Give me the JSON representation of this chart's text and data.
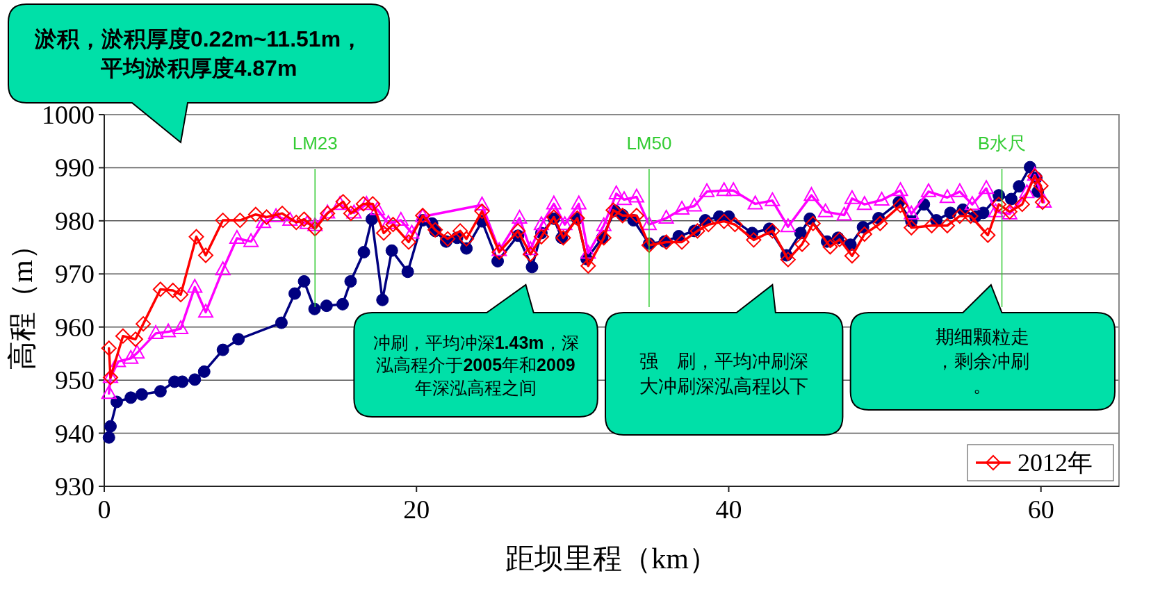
{
  "chart_data": {
    "type": "line",
    "xlabel": "距坝里程（km）",
    "ylabel": "高程（m）",
    "xlim": [
      0,
      65
    ],
    "xticks": [
      0,
      20,
      40,
      60
    ],
    "ylim": [
      930,
      1000
    ],
    "yticks": [
      930,
      940,
      950,
      960,
      970,
      980,
      990,
      1000
    ],
    "grid": "y",
    "legend": "bottom right",
    "line_style": "solid",
    "series": [
      {
        "color": "#000080",
        "marker": "circle",
        "x": [
          0.3,
          0.4,
          0.8,
          1.7,
          2.4,
          3.6,
          4.5,
          5.0,
          5.8,
          6.4,
          7.6,
          8.6,
          11.35,
          12.2,
          12.8,
          13.47,
          14.24,
          15.27,
          15.78,
          16.63,
          17.14,
          17.82,
          18.42,
          19.44,
          20.4,
          21.0,
          21.2,
          21.9,
          22.6,
          23.2,
          24.2,
          25.2,
          26.5,
          27.4,
          28.0,
          28.8,
          29.3,
          30.3,
          30.9,
          31.9,
          32.7,
          33.2,
          33.9,
          34.9,
          35.9,
          36.8,
          37.8,
          38.5,
          39.4,
          40.0,
          41.5,
          42.6,
          43.7,
          44.6,
          45.2,
          46.3,
          47.0,
          47.8,
          48.6,
          49.6,
          50.9,
          51.7,
          52.5,
          53.3,
          54.2,
          55.0,
          55.8,
          56.3,
          57.3,
          58.1,
          58.6,
          59.3,
          59.7,
          59.8
        ],
        "values": [
          939.2,
          941.3,
          945.9,
          946.7,
          947.3,
          947.9,
          949.7,
          949.7,
          950.1,
          951.6,
          955.7,
          957.7,
          960.8,
          966.3,
          968.6,
          963.4,
          964.0,
          964.3,
          968.6,
          974.1,
          980.3,
          965.1,
          974.4,
          970.4,
          980.1,
          979.5,
          978.1,
          976.1,
          976.8,
          974.8,
          979.9,
          972.4,
          977.2,
          971.3,
          977.7,
          980.4,
          976.8,
          980.4,
          972.8,
          976.8,
          981.9,
          981.1,
          980.1,
          975.7,
          976.1,
          977.1,
          978.1,
          980.1,
          980.8,
          980.8,
          977.7,
          978.5,
          973.5,
          977.7,
          980.4,
          976.1,
          976.8,
          975.5,
          978.8,
          980.5,
          983.5,
          979.9,
          983.1,
          980.1,
          981.5,
          982.1,
          980.8,
          981.5,
          984.8,
          984.1,
          986.5,
          990.1,
          988.1,
          985.5
        ]
      },
      {
        "color": "#ff00ff",
        "marker": "triangle",
        "x": [
          0.3,
          0.4,
          0.9,
          1.7,
          2.1,
          3.3,
          4.1,
          4.9,
          5.8,
          6.5,
          7.6,
          8.5,
          9.4,
          10.2,
          11.0,
          11.9,
          13.0,
          13.5,
          14.3,
          15.1,
          16.0,
          16.8,
          17.5,
          18.2,
          19.0,
          19.7,
          20.4,
          24.2,
          25.3,
          26.6,
          27.3,
          28.0,
          28.8,
          29.5,
          30.4,
          31.0,
          32.0,
          32.8,
          33.3,
          34.1,
          34.9,
          36.0,
          37.0,
          37.8,
          38.6,
          39.7,
          40.3,
          41.7,
          42.8,
          43.8,
          45.3,
          46.2,
          47.4,
          47.9,
          48.7,
          49.8,
          51.0,
          51.7,
          52.8,
          54.0,
          54.8,
          55.6,
          56.5,
          57.1,
          58.0,
          59.1,
          59.6,
          60.2
        ],
        "values": [
          947.5,
          950.5,
          953.5,
          954.1,
          955.1,
          958.8,
          959.1,
          959.7,
          967.5,
          962.8,
          970.8,
          976.7,
          976.1,
          979.7,
          980.8,
          980.1,
          979.5,
          979.1,
          981.5,
          983.1,
          981.5,
          983.1,
          982.1,
          979.5,
          980.1,
          977.7,
          980.8,
          983.0,
          974.4,
          980.5,
          974.6,
          979.3,
          983.2,
          979.3,
          983.2,
          973.9,
          979.1,
          985.1,
          984.0,
          984.5,
          979.3,
          980.5,
          982.2,
          982.8,
          985.5,
          985.7,
          985.7,
          983.2,
          983.8,
          978.9,
          984.8,
          981.7,
          981.1,
          984.2,
          983.1,
          983.9,
          985.7,
          981.3,
          985.5,
          984.4,
          985.5,
          983.1,
          986.1,
          981.7,
          981.3,
          985.3,
          988.6,
          983.5
        ]
      },
      {
        "name": "2012年",
        "color": "#ff0000",
        "marker": "diamond",
        "x": [
          0.3,
          0.4,
          1.2,
          2.0,
          2.5,
          3.6,
          4.4,
          4.9,
          5.9,
          6.5,
          7.6,
          8.7,
          9.7,
          10.4,
          11.4,
          12.3,
          12.8,
          13.5,
          14.3,
          15.3,
          15.8,
          16.6,
          17.2,
          17.9,
          18.5,
          19.5,
          20.4,
          21.2,
          22.0,
          22.8,
          23.2,
          24.2,
          25.3,
          26.5,
          27.3,
          28.0,
          28.8,
          29.4,
          30.3,
          31.0,
          32.0,
          32.6,
          33.2,
          34.1,
          34.9,
          36.0,
          37.0,
          38.0,
          38.7,
          39.7,
          40.4,
          41.6,
          42.8,
          43.8,
          44.7,
          45.4,
          46.5,
          47.1,
          47.9,
          48.7,
          49.7,
          51.0,
          51.7,
          53.0,
          54.0,
          54.8,
          55.5,
          56.6,
          57.3,
          58.0,
          58.8,
          59.6,
          60.0,
          60.1
        ],
        "values": [
          956.0,
          950.5,
          958.3,
          957.7,
          960.6,
          967.1,
          966.9,
          966.1,
          977.0,
          973.5,
          980.1,
          980.1,
          981.2,
          980.7,
          981.4,
          979.7,
          980.3,
          978.5,
          981.4,
          983.6,
          981.4,
          983.2,
          983.2,
          977.7,
          979.3,
          976.0,
          981.0,
          978.3,
          976.6,
          978.1,
          976.6,
          981.8,
          974.1,
          978.1,
          973.7,
          977.0,
          980.7,
          976.8,
          980.5,
          971.5,
          976.8,
          982.0,
          981.0,
          981.0,
          975.4,
          976.0,
          976.0,
          978.1,
          979.3,
          979.9,
          979.3,
          976.4,
          978.1,
          972.7,
          975.6,
          979.5,
          975.1,
          976.5,
          973.4,
          977.5,
          979.5,
          982.9,
          978.7,
          979.1,
          979.1,
          980.9,
          980.9,
          977.3,
          983.1,
          981.7,
          983.1,
          988.4,
          986.6,
          983.5
        ]
      }
    ],
    "ref_lines": [
      {
        "axis": "x",
        "value": 13.5,
        "label": "LM23",
        "color": "#33cc33"
      },
      {
        "axis": "x",
        "value": 34.9,
        "label": "LM50",
        "color": "#33cc33"
      },
      {
        "axis": "x",
        "value": 57.5,
        "label": "B水尺",
        "color": "#33cc33"
      }
    ],
    "annotations": [
      "淤积，淤积厚度0.22m~11.51m，平均淤积厚度4.87m",
      "冲刷，平均冲深1.43m，深泓高程介于2005年和2009年深泓高程之间",
      "强　刷，平均冲刷深大冲刷深泓高程以下",
      "期细颗粒走，剩余冲刷。"
    ]
  }
}
